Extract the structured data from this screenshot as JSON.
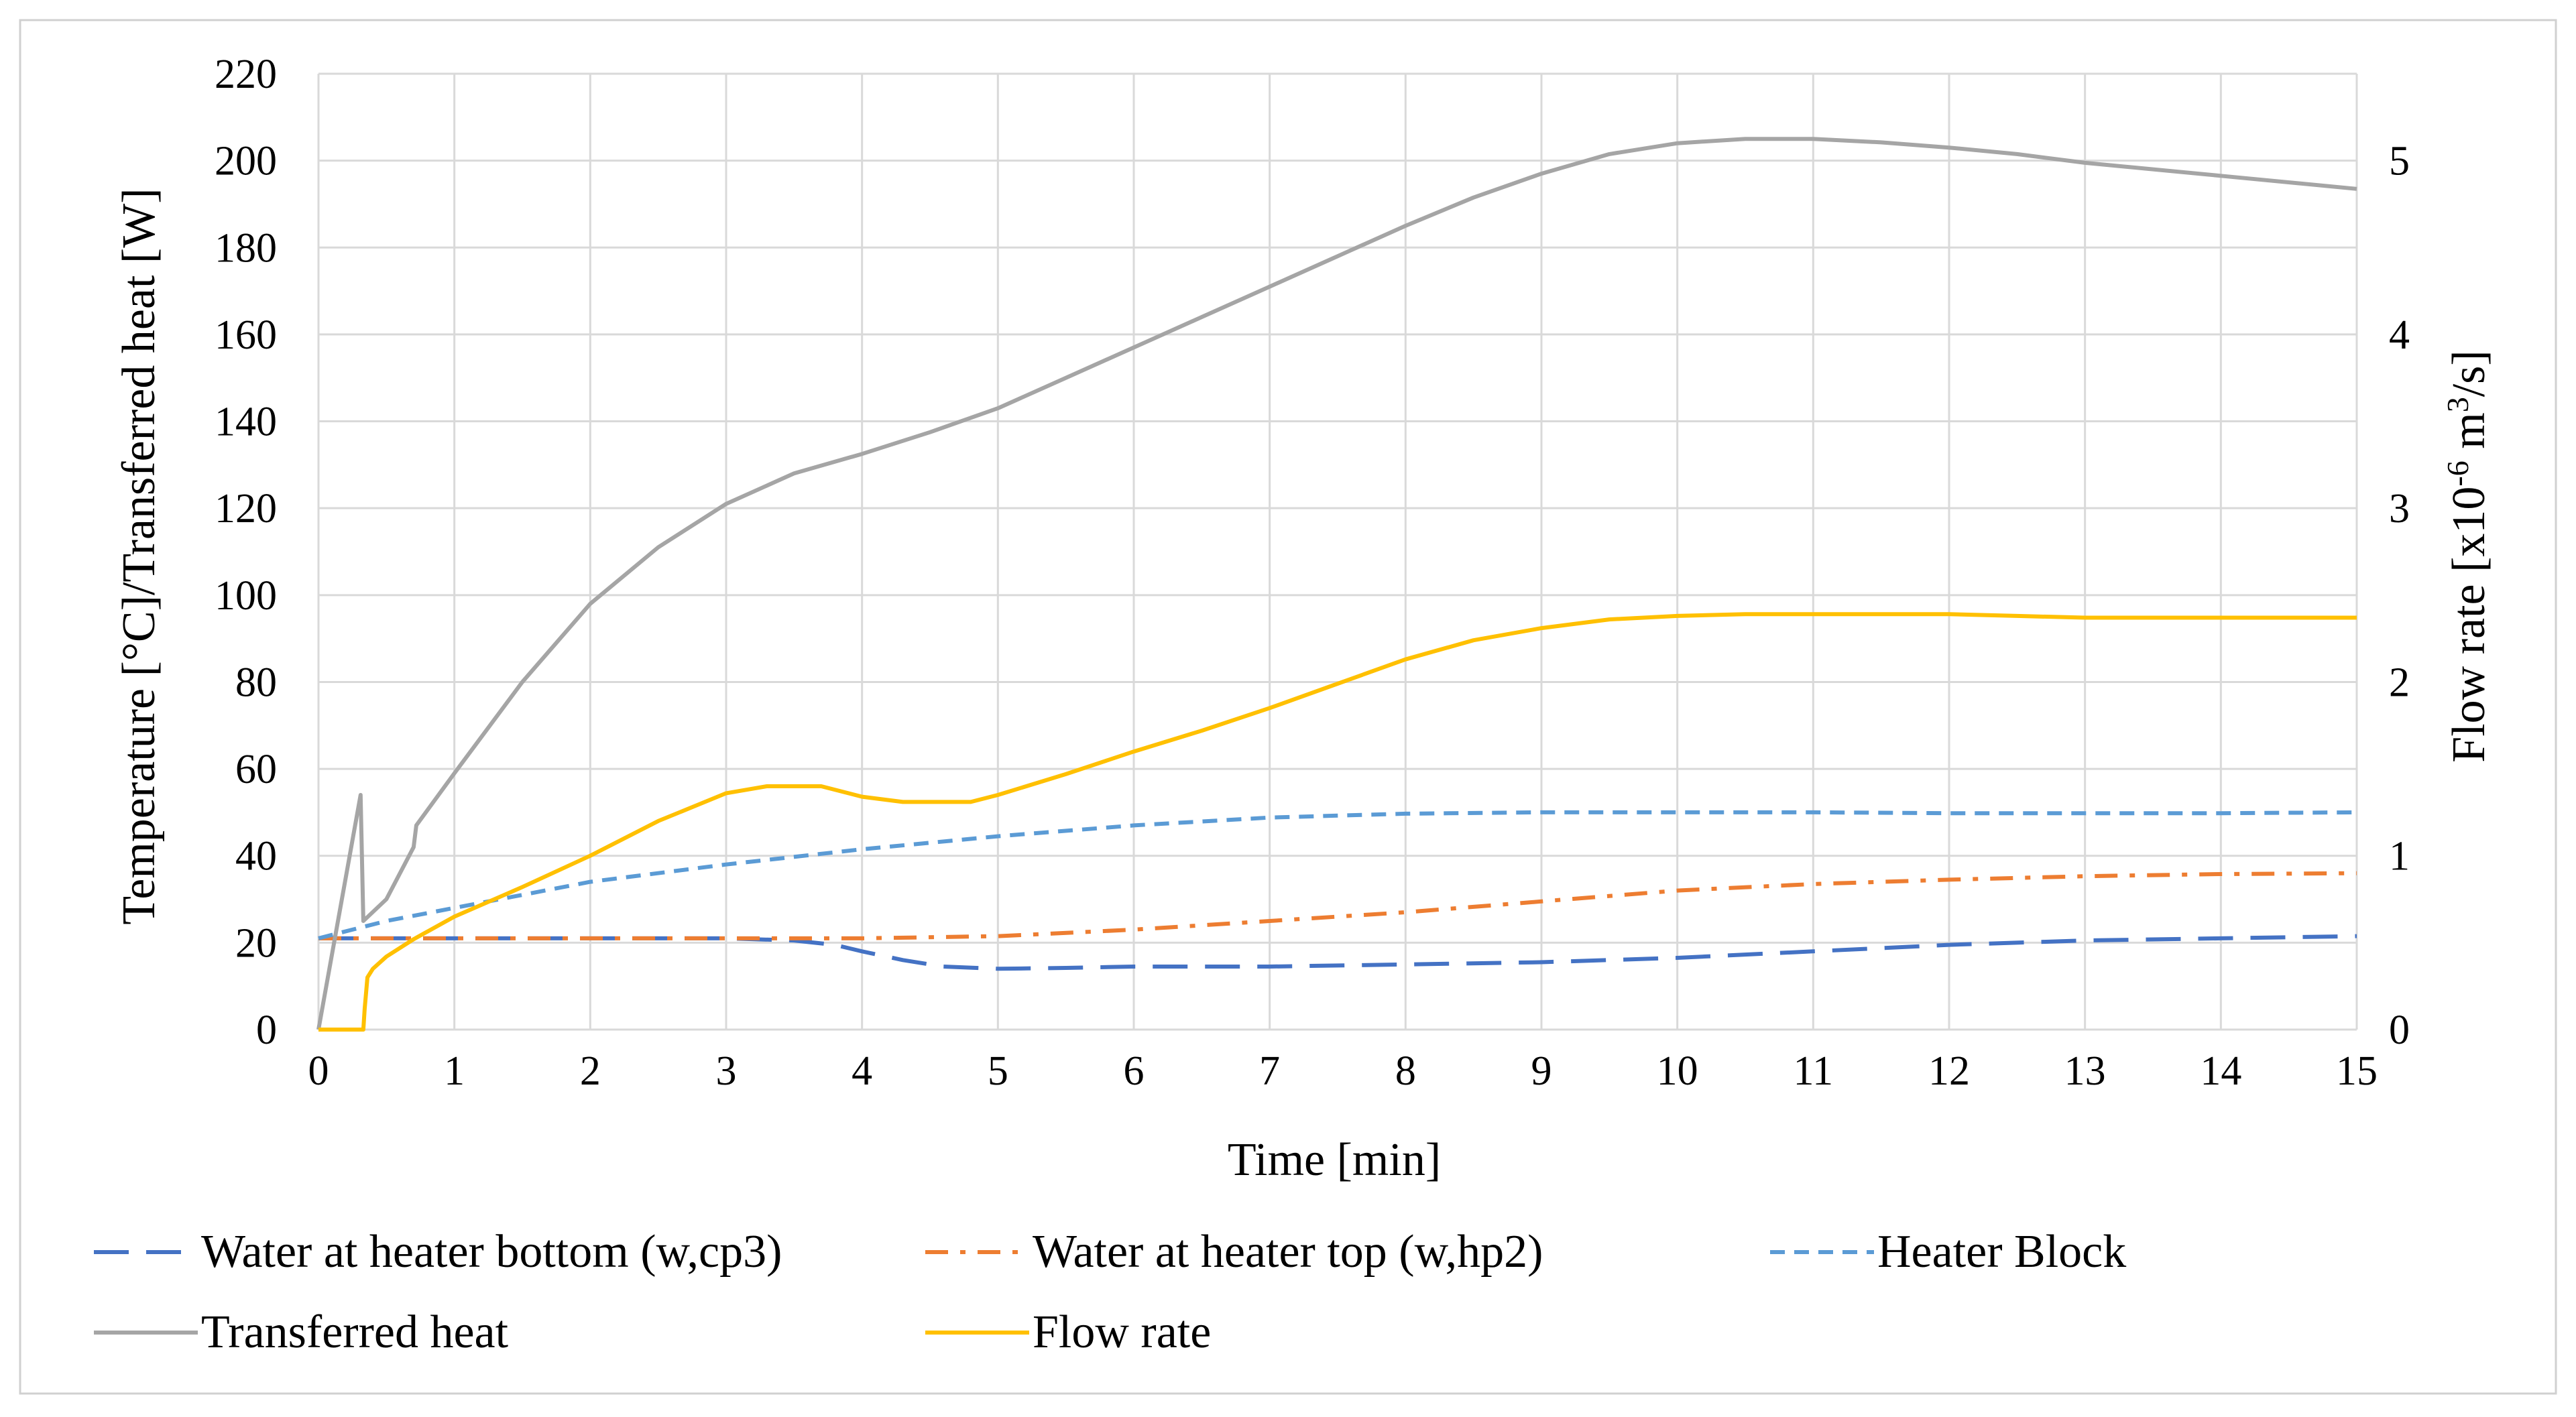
{
  "chart_data": {
    "type": "line",
    "title": "",
    "xlabel": "Time [min]",
    "ylabel": "Temperature [°C]/Transferred heat [W]",
    "y2label": {
      "prefix": "Flow rate [x10",
      "exp1": "-6",
      "mid": " m",
      "exp2": "3",
      "suffix": "/s]"
    },
    "xlim": [
      0,
      15
    ],
    "ylim": [
      0,
      220
    ],
    "y2lim": [
      0,
      5.5
    ],
    "x_ticks": [
      "0",
      "1",
      "2",
      "3",
      "4",
      "5",
      "6",
      "7",
      "8",
      "9",
      "10",
      "11",
      "12",
      "13",
      "14",
      "15"
    ],
    "y_ticks": [
      "0",
      "20",
      "40",
      "60",
      "80",
      "100",
      "120",
      "140",
      "160",
      "180",
      "200",
      "220"
    ],
    "y2_ticks": [
      "0",
      "1",
      "2",
      "3",
      "4",
      "5"
    ],
    "grid": true,
    "legend_position": "bottom",
    "series": [
      {
        "name": "Water at heater bottom (w,cp3)",
        "color": "#4472c4",
        "dash": "long-dash",
        "axis": "left",
        "points": [
          [
            0,
            21
          ],
          [
            0.5,
            21
          ],
          [
            1,
            21
          ],
          [
            2,
            21
          ],
          [
            3,
            21
          ],
          [
            3.5,
            20.5
          ],
          [
            3.8,
            19.5
          ],
          [
            4,
            18
          ],
          [
            4.3,
            16
          ],
          [
            4.6,
            14.5
          ],
          [
            5,
            14
          ],
          [
            5.5,
            14.2
          ],
          [
            6,
            14.5
          ],
          [
            7,
            14.5
          ],
          [
            8,
            15
          ],
          [
            9,
            15.5
          ],
          [
            10,
            16.5
          ],
          [
            11,
            18
          ],
          [
            12,
            19.5
          ],
          [
            13,
            20.5
          ],
          [
            14,
            21
          ],
          [
            15,
            21.5
          ]
        ]
      },
      {
        "name": "Water at heater top (w,hp2)",
        "color": "#ed7d31",
        "dash": "dash-dot",
        "axis": "left",
        "points": [
          [
            0,
            21
          ],
          [
            1,
            21
          ],
          [
            2,
            21
          ],
          [
            3,
            21
          ],
          [
            4,
            21
          ],
          [
            5,
            21.5
          ],
          [
            6,
            23
          ],
          [
            7,
            25
          ],
          [
            8,
            27
          ],
          [
            9,
            29.5
          ],
          [
            10,
            32
          ],
          [
            11,
            33.5
          ],
          [
            12,
            34.5
          ],
          [
            13,
            35.3
          ],
          [
            14,
            35.8
          ],
          [
            15,
            36
          ]
        ]
      },
      {
        "name": "Heater Block",
        "color": "#5b9bd5",
        "dash": "short-dash",
        "axis": "left",
        "points": [
          [
            0,
            21
          ],
          [
            0.25,
            23
          ],
          [
            0.5,
            25
          ],
          [
            1,
            28
          ],
          [
            1.5,
            31
          ],
          [
            2,
            34
          ],
          [
            3,
            38
          ],
          [
            4,
            41.5
          ],
          [
            5,
            44.5
          ],
          [
            6,
            47
          ],
          [
            7,
            48.8
          ],
          [
            8,
            49.7
          ],
          [
            9,
            50
          ],
          [
            10,
            50
          ],
          [
            11,
            50
          ],
          [
            12,
            49.8
          ],
          [
            13,
            49.8
          ],
          [
            14,
            49.8
          ],
          [
            15,
            50
          ]
        ]
      },
      {
        "name": "Transferred heat",
        "color": "#a5a5a5",
        "dash": "solid",
        "axis": "left",
        "points": [
          [
            0,
            0
          ],
          [
            0.31,
            54
          ],
          [
            0.33,
            25
          ],
          [
            0.5,
            30
          ],
          [
            0.7,
            42
          ],
          [
            0.72,
            47
          ],
          [
            1,
            59
          ],
          [
            1.5,
            80
          ],
          [
            2,
            98
          ],
          [
            2.5,
            111
          ],
          [
            3,
            121
          ],
          [
            3.5,
            128
          ],
          [
            4,
            132.5
          ],
          [
            4.5,
            137.5
          ],
          [
            5,
            143
          ],
          [
            5.5,
            150
          ],
          [
            6,
            157
          ],
          [
            6.5,
            164
          ],
          [
            7,
            171
          ],
          [
            7.5,
            178
          ],
          [
            8,
            185
          ],
          [
            8.5,
            191.5
          ],
          [
            9,
            197
          ],
          [
            9.5,
            201.5
          ],
          [
            10,
            204
          ],
          [
            10.5,
            205
          ],
          [
            11,
            205
          ],
          [
            11.5,
            204.2
          ],
          [
            12,
            203
          ],
          [
            12.5,
            201.5
          ],
          [
            13,
            199.5
          ],
          [
            14,
            196.5
          ],
          [
            15,
            193.5
          ]
        ]
      },
      {
        "name": "Flow rate",
        "color": "#ffc000",
        "dash": "solid",
        "axis": "right",
        "points": [
          [
            0,
            0
          ],
          [
            0.33,
            0
          ],
          [
            0.34,
            0.12
          ],
          [
            0.36,
            0.3
          ],
          [
            0.4,
            0.35
          ],
          [
            0.5,
            0.42
          ],
          [
            0.7,
            0.52
          ],
          [
            1,
            0.65
          ],
          [
            1.5,
            0.82
          ],
          [
            2,
            1.0
          ],
          [
            2.5,
            1.2
          ],
          [
            3,
            1.36
          ],
          [
            3.3,
            1.4
          ],
          [
            3.7,
            1.4
          ],
          [
            4,
            1.34
          ],
          [
            4.3,
            1.31
          ],
          [
            4.6,
            1.31
          ],
          [
            4.8,
            1.31
          ],
          [
            5,
            1.35
          ],
          [
            5.5,
            1.47
          ],
          [
            6,
            1.6
          ],
          [
            6.5,
            1.72
          ],
          [
            7,
            1.85
          ],
          [
            7.5,
            1.99
          ],
          [
            8,
            2.13
          ],
          [
            8.5,
            2.24
          ],
          [
            9,
            2.31
          ],
          [
            9.5,
            2.36
          ],
          [
            10,
            2.38
          ],
          [
            10.5,
            2.39
          ],
          [
            11,
            2.39
          ],
          [
            12,
            2.39
          ],
          [
            12.5,
            2.38
          ],
          [
            13,
            2.37
          ],
          [
            14,
            2.37
          ],
          [
            15,
            2.37
          ]
        ]
      }
    ]
  }
}
